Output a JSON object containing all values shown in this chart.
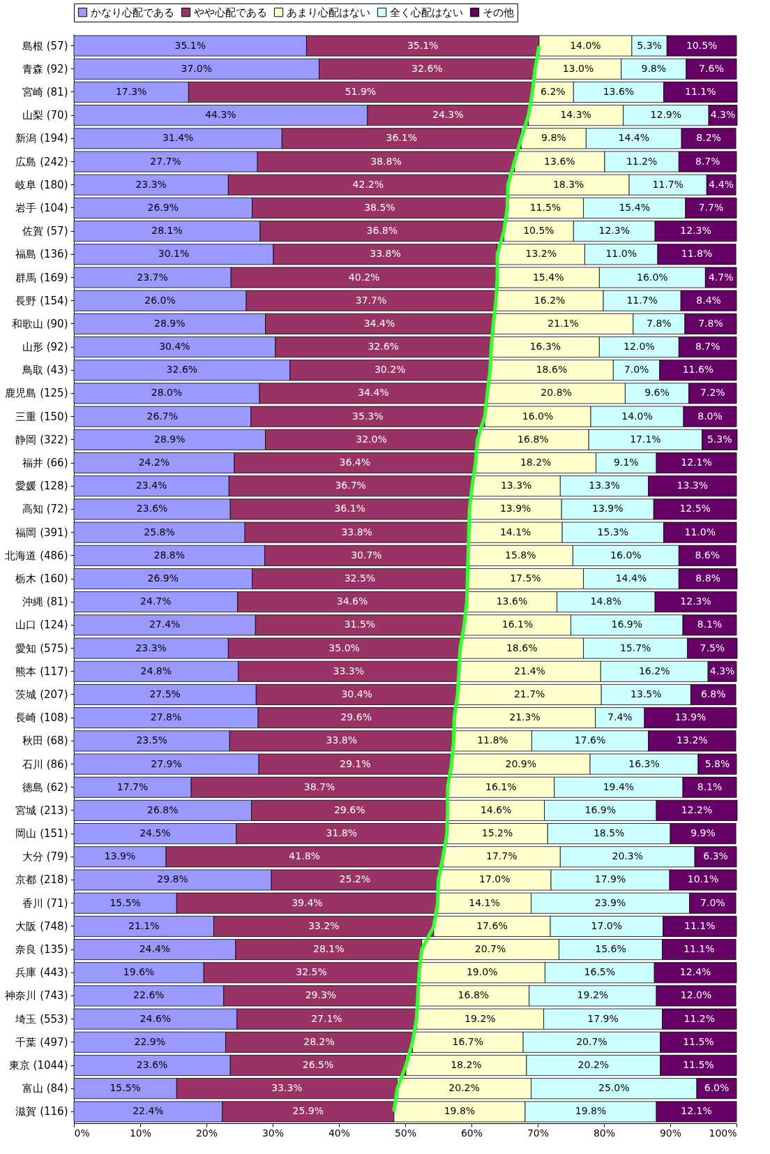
{
  "chart_data": {
    "type": "bar",
    "orientation": "horizontal",
    "stacked": true,
    "legend": "top",
    "grid": false,
    "categories": [
      "島根 (57)",
      "青森 (92)",
      "宮崎 (81)",
      "山梨 (70)",
      "新潟 (194)",
      "広島 (242)",
      "岐阜 (180)",
      "岩手 (104)",
      "佐賀 (57)",
      "福島 (136)",
      "群馬 (169)",
      "長野 (154)",
      "和歌山 (90)",
      "山形 (92)",
      "鳥取 (43)",
      "鹿児島 (125)",
      "三重 (150)",
      "静岡 (322)",
      "福井 (66)",
      "愛媛 (128)",
      "高知 (72)",
      "福岡 (391)",
      "北海道 (486)",
      "栃木 (160)",
      "沖縄 (81)",
      "山口 (124)",
      "愛知 (575)",
      "熊本 (117)",
      "茨城 (207)",
      "長崎 (108)",
      "秋田 (68)",
      "石川 (86)",
      "徳島 (62)",
      "宮城 (213)",
      "岡山 (151)",
      "大分 (79)",
      "京都 (218)",
      "香川 (71)",
      "大阪 (748)",
      "奈良 (135)",
      "兵庫 (443)",
      "神奈川 (743)",
      "埼玉 (553)",
      "千葉 (497)",
      "東京 (1044)",
      "富山 (84)",
      "滋賀 (116)"
    ],
    "xlim": [
      0,
      100
    ],
    "xticks": [
      {
        "value": 0,
        "label": "0%"
      },
      {
        "value": 10,
        "label": "10%"
      },
      {
        "value": 20,
        "label": "20%"
      },
      {
        "value": 30,
        "label": "30%"
      },
      {
        "value": 40,
        "label": "40%"
      },
      {
        "value": 50,
        "label": "50%"
      },
      {
        "value": 60,
        "label": "60%"
      },
      {
        "value": 70,
        "label": "70%"
      },
      {
        "value": 80,
        "label": "80%"
      },
      {
        "value": 90,
        "label": "90%"
      },
      {
        "value": 100,
        "label": "100%"
      }
    ],
    "series": [
      {
        "name": "かなり心配である",
        "color": "#9999ff",
        "values": [
          35.1,
          37.0,
          17.3,
          44.3,
          31.4,
          27.7,
          23.3,
          26.9,
          28.1,
          30.1,
          23.7,
          26.0,
          28.9,
          30.4,
          32.6,
          28.0,
          26.7,
          28.9,
          24.2,
          23.4,
          23.6,
          25.8,
          28.8,
          26.9,
          24.7,
          27.4,
          23.3,
          24.8,
          27.5,
          27.8,
          23.5,
          27.9,
          17.7,
          26.8,
          24.5,
          13.9,
          29.8,
          15.5,
          21.1,
          24.4,
          19.6,
          22.6,
          24.6,
          22.9,
          23.6,
          15.5,
          22.4
        ],
        "value_labels": [
          "35.1%",
          "37.0%",
          "17.3%",
          "44.3%",
          "31.4%",
          "27.7%",
          "23.3%",
          "26.9%",
          "28.1%",
          "30.1%",
          "23.7%",
          "26.0%",
          "28.9%",
          "30.4%",
          "32.6%",
          "28.0%",
          "26.7%",
          "28.9%",
          "24.2%",
          "23.4%",
          "23.6%",
          "25.8%",
          "28.8%",
          "26.9%",
          "24.7%",
          "27.4%",
          "23.3%",
          "24.8%",
          "27.5%",
          "27.8%",
          "23.5%",
          "27.9%",
          "17.7%",
          "26.8%",
          "24.5%",
          "13.9%",
          "29.8%",
          "15.5%",
          "21.1%",
          "24.4%",
          "19.6%",
          "22.6%",
          "24.6%",
          "22.9%",
          "23.6%",
          "15.5%",
          "22.4%"
        ]
      },
      {
        "name": "やや心配である",
        "color": "#993366",
        "values": [
          35.1,
          32.6,
          51.9,
          24.3,
          36.1,
          38.8,
          42.2,
          38.5,
          36.8,
          33.8,
          40.2,
          37.7,
          34.4,
          32.6,
          30.2,
          34.4,
          35.3,
          32.0,
          36.4,
          36.7,
          36.1,
          33.8,
          30.7,
          32.5,
          34.6,
          31.5,
          35.0,
          33.3,
          30.4,
          29.6,
          33.8,
          29.1,
          38.7,
          29.6,
          31.8,
          41.8,
          25.2,
          39.4,
          33.2,
          28.1,
          32.5,
          29.3,
          27.1,
          28.2,
          26.5,
          33.3,
          25.9
        ],
        "value_labels": [
          "35.1%",
          "32.6%",
          "51.9%",
          "24.3%",
          "36.1%",
          "38.8%",
          "42.2%",
          "38.5%",
          "36.8%",
          "33.8%",
          "40.2%",
          "37.7%",
          "34.4%",
          "32.6%",
          "30.2%",
          "34.4%",
          "35.3%",
          "32.0%",
          "36.4%",
          "36.7%",
          "36.1%",
          "33.8%",
          "30.7%",
          "32.5%",
          "34.6%",
          "31.5%",
          "35.0%",
          "33.3%",
          "30.4%",
          "29.6%",
          "33.8%",
          "29.1%",
          "38.7%",
          "29.6%",
          "31.8%",
          "41.8%",
          "25.2%",
          "39.4%",
          "33.2%",
          "28.1%",
          "32.5%",
          "29.3%",
          "27.1%",
          "28.2%",
          "26.5%",
          "33.3%",
          "25.9%"
        ]
      },
      {
        "name": "あまり心配はない",
        "color": "#ffffcc",
        "values": [
          14.0,
          13.0,
          6.2,
          14.3,
          9.8,
          13.6,
          18.3,
          11.5,
          10.5,
          13.2,
          15.4,
          16.2,
          21.1,
          16.3,
          18.6,
          20.8,
          16.0,
          16.8,
          18.2,
          13.3,
          13.9,
          14.1,
          15.8,
          17.5,
          13.6,
          16.1,
          18.6,
          21.4,
          21.7,
          21.3,
          11.8,
          20.9,
          16.1,
          14.6,
          15.2,
          17.7,
          17.0,
          14.1,
          17.6,
          20.7,
          19.0,
          16.8,
          19.2,
          16.7,
          18.2,
          20.2,
          19.8
        ],
        "value_labels": [
          "14.0%",
          "13.0%",
          "6.2%",
          "14.3%",
          "9.8%",
          "13.6%",
          "18.3%",
          "11.5%",
          "10.5%",
          "13.2%",
          "15.4%",
          "16.2%",
          "21.1%",
          "16.3%",
          "18.6%",
          "20.8%",
          "16.0%",
          "16.8%",
          "18.2%",
          "13.3%",
          "13.9%",
          "14.1%",
          "15.8%",
          "17.5%",
          "13.6%",
          "16.1%",
          "18.6%",
          "21.4%",
          "21.7%",
          "21.3%",
          "11.8%",
          "20.9%",
          "16.1%",
          "14.6%",
          "15.2%",
          "17.7%",
          "17.0%",
          "14.1%",
          "17.6%",
          "20.7%",
          "19.0%",
          "16.8%",
          "19.2%",
          "16.7%",
          "18.2%",
          "20.2%",
          "19.8%"
        ]
      },
      {
        "name": "全く心配はない",
        "color": "#ccffff",
        "values": [
          5.3,
          9.8,
          13.6,
          12.9,
          14.4,
          11.2,
          11.7,
          15.4,
          12.3,
          11.0,
          16.0,
          11.7,
          7.8,
          12.0,
          7.0,
          9.6,
          14.0,
          17.1,
          9.1,
          13.3,
          13.9,
          15.3,
          16.0,
          14.4,
          14.8,
          16.9,
          15.7,
          16.2,
          13.5,
          7.4,
          17.6,
          16.3,
          19.4,
          16.9,
          18.5,
          20.3,
          17.9,
          23.9,
          17.0,
          15.6,
          16.5,
          19.2,
          17.9,
          20.7,
          20.2,
          25.0,
          19.8
        ],
        "value_labels": [
          "5.3%",
          "9.8%",
          "13.6%",
          "12.9%",
          "14.4%",
          "11.2%",
          "11.7%",
          "15.4%",
          "12.3%",
          "11.0%",
          "16.0%",
          "11.7%",
          "7.8%",
          "12.0%",
          "7.0%",
          "9.6%",
          "14.0%",
          "17.1%",
          "9.1%",
          "13.3%",
          "13.9%",
          "15.3%",
          "16.0%",
          "14.4%",
          "14.8%",
          "16.9%",
          "15.7%",
          "16.2%",
          "13.5%",
          "7.4%",
          "17.6%",
          "16.3%",
          "19.4%",
          "16.9%",
          "18.5%",
          "20.3%",
          "17.9%",
          "23.9%",
          "17.0%",
          "15.6%",
          "16.5%",
          "19.2%",
          "17.9%",
          "20.7%",
          "20.2%",
          "25.0%",
          "19.8%"
        ]
      },
      {
        "name": "その他",
        "color": "#660066",
        "values": [
          10.5,
          7.6,
          11.1,
          4.3,
          8.2,
          8.7,
          4.4,
          7.7,
          12.3,
          11.8,
          4.7,
          8.4,
          7.8,
          8.7,
          11.6,
          7.2,
          8.0,
          5.3,
          12.1,
          13.3,
          12.5,
          11.0,
          8.6,
          8.8,
          12.3,
          8.1,
          7.5,
          4.3,
          6.8,
          13.9,
          13.2,
          5.8,
          8.1,
          12.2,
          9.9,
          6.3,
          10.1,
          7.0,
          11.1,
          11.1,
          12.4,
          12.0,
          11.2,
          11.5,
          11.5,
          6.0,
          12.1
        ],
        "value_labels": [
          "10.5%",
          "7.6%",
          "11.1%",
          "4.3%",
          "8.2%",
          "8.7%",
          "4.4%",
          "7.7%",
          "12.3%",
          "11.8%",
          "4.7%",
          "8.4%",
          "7.8%",
          "8.7%",
          "11.6%",
          "7.2%",
          "8.0%",
          "5.3%",
          "12.1%",
          "13.3%",
          "12.5%",
          "11.0%",
          "8.6%",
          "8.8%",
          "12.3%",
          "8.1%",
          "7.5%",
          "4.3%",
          "6.8%",
          "13.9%",
          "13.2%",
          "5.8%",
          "8.1%",
          "12.2%",
          "9.9%",
          "6.3%",
          "10.1%",
          "7.0%",
          "11.1%",
          "11.1%",
          "12.4%",
          "12.0%",
          "11.2%",
          "11.5%",
          "11.5%",
          "6.0%",
          "12.1%"
        ]
      },
      {
        "type": "line",
        "color": "#33ff33",
        "values": [
          70.2,
          69.6,
          69.2,
          68.6,
          67.5,
          66.5,
          65.5,
          65.4,
          64.9,
          63.9,
          63.9,
          63.7,
          63.3,
          63.0,
          62.8,
          62.4,
          62.0,
          60.9,
          60.6,
          60.1,
          59.7,
          59.6,
          59.5,
          59.4,
          59.3,
          58.9,
          58.3,
          58.1,
          57.9,
          57.4,
          57.3,
          57.0,
          56.4,
          56.4,
          56.3,
          55.7,
          55.0,
          54.9,
          54.3,
          52.5,
          52.1,
          51.9,
          51.7,
          51.1,
          50.1,
          48.8,
          48.3
        ]
      }
    ]
  }
}
